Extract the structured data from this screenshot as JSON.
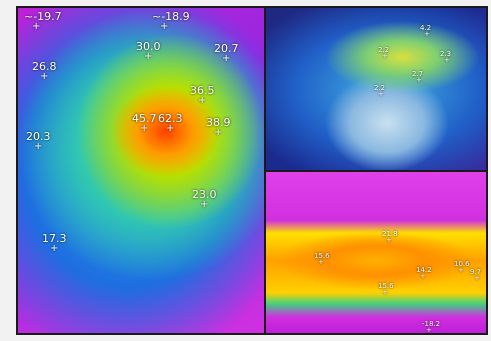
{
  "panels": [
    {
      "readings": [
        "~-19.7",
        "~-18.9",
        "30.0",
        "20.7",
        "26.8",
        "36.5",
        "45.7",
        "62.3",
        "38.9",
        "20.3",
        "23.0",
        "17.3"
      ]
    },
    {
      "readings": [
        "4.2",
        "2.2",
        "2.3",
        "2.7",
        "2.2"
      ]
    },
    {
      "readings": [
        "21.8",
        "15.6",
        "14.2",
        "10.6",
        "9.7",
        "15.6",
        "-18.2"
      ]
    }
  ]
}
